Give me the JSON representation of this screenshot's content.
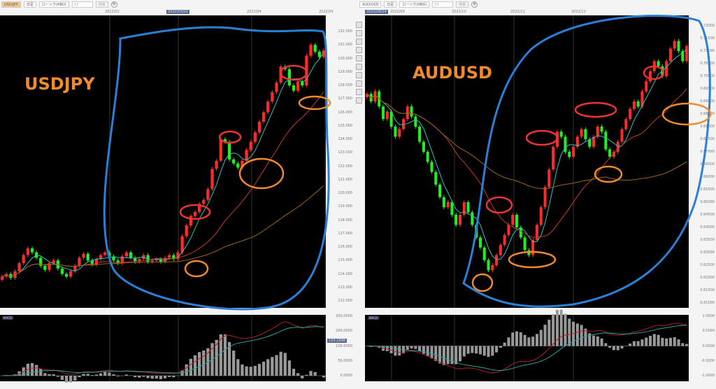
{
  "left": {
    "toolbar": {
      "symbol": "USD/JPY",
      "period": "日足",
      "chart_type": "ローソク(HBD)",
      "date": "/ /",
      "button": "検索"
    },
    "dates": [
      "2022/02",
      "2022/03/02",
      "2022/04",
      "2022/05"
    ],
    "annotation": "USDJPY",
    "macd_label": "MACD",
    "macd_value": "139.2998",
    "y_axis": [
      "132.000",
      "131.000",
      "130.000",
      "129.000",
      "128.000",
      "127.000",
      "126.000",
      "125.000",
      "124.000",
      "123.000",
      "122.000",
      "121.000",
      "120.000",
      "119.000",
      "118.000",
      "117.000",
      "116.000",
      "115.000",
      "114.000",
      "113.000",
      "112.000"
    ],
    "macd_axis": [
      "250.0000",
      "200.0000",
      "100.0000",
      "50.0000",
      "0.0000"
    ]
  },
  "right": {
    "toolbar": {
      "symbol": "AUD/USD",
      "period": "日足",
      "chart_type": "ローソク(HBD)",
      "date": "/ /",
      "button": "検索"
    },
    "dates": [
      "2022/08/24",
      "2022/09",
      "2022/10",
      "2022/11",
      "2022/12"
    ],
    "annotation": "AUDUSD",
    "macd_label": "MACD",
    "y_axis": [
      "0.72000",
      "0.71500",
      "0.71000",
      "0.70500",
      "0.70000",
      "0.69500",
      "0.69000",
      "0.68500",
      "0.68000",
      "0.67500",
      "0.67000",
      "0.66500",
      "0.66000",
      "0.65500",
      "0.65000",
      "0.64500",
      "0.64000",
      "0.63500",
      "0.63000",
      "0.62500",
      "0.62000",
      "0.61500",
      "0.61000"
    ],
    "macd_axis": [
      "1.0000",
      "0.5000",
      "0.0000",
      "-0.5000",
      "-1.0000"
    ]
  },
  "chart_data": [
    {
      "type": "candlestick",
      "symbol": "USDJPY",
      "ylim": [
        112,
        132
      ],
      "up_color": "#ff2a2a",
      "down_color": "#22ee22",
      "closes": [
        113.8,
        114.0,
        113.7,
        114.2,
        114.8,
        115.4,
        115.9,
        115.6,
        115.2,
        114.6,
        114.3,
        114.8,
        115.0,
        114.4,
        114.0,
        113.8,
        114.2,
        114.6,
        115.2,
        115.5,
        115.0,
        114.7,
        115.1,
        115.4,
        115.6,
        115.3,
        115.0,
        114.8,
        115.3,
        115.6,
        115.2,
        114.9,
        115.1,
        115.4,
        114.9,
        115.0,
        115.1,
        114.9,
        115.2,
        115.4,
        115.1,
        115.6,
        116.8,
        117.6,
        118.3,
        118.6,
        119.2,
        119.5,
        120.3,
        121.8,
        122.4,
        124.0,
        123.8,
        122.5,
        122.2,
        121.9,
        122.4,
        123.2,
        123.8,
        124.5,
        125.3,
        126.0,
        126.8,
        127.5,
        128.2,
        129.4,
        129.2,
        128.0,
        127.6,
        128.3,
        128.0,
        130.2,
        131.0,
        130.5,
        130.1,
        130.6
      ]
    },
    {
      "type": "candlestick",
      "symbol": "AUDUSD",
      "ylim": [
        0.61,
        0.72
      ],
      "up_color": "#ff2a2a",
      "down_color": "#22ee22",
      "closes": [
        0.693,
        0.69,
        0.694,
        0.688,
        0.683,
        0.686,
        0.68,
        0.676,
        0.679,
        0.683,
        0.688,
        0.684,
        0.68,
        0.674,
        0.67,
        0.666,
        0.662,
        0.657,
        0.652,
        0.648,
        0.65,
        0.645,
        0.641,
        0.645,
        0.65,
        0.646,
        0.641,
        0.636,
        0.632,
        0.627,
        0.623,
        0.625,
        0.629,
        0.633,
        0.637,
        0.641,
        0.645,
        0.64,
        0.636,
        0.631,
        0.629,
        0.635,
        0.641,
        0.648,
        0.656,
        0.663,
        0.672,
        0.678,
        0.676,
        0.67,
        0.668,
        0.672,
        0.676,
        0.679,
        0.675,
        0.672,
        0.676,
        0.68,
        0.678,
        0.671,
        0.668,
        0.67,
        0.674,
        0.679,
        0.683,
        0.687,
        0.69,
        0.688,
        0.694,
        0.698,
        0.702,
        0.706,
        0.704,
        0.7,
        0.706,
        0.711,
        0.714,
        0.71,
        0.706,
        0.712
      ]
    }
  ]
}
